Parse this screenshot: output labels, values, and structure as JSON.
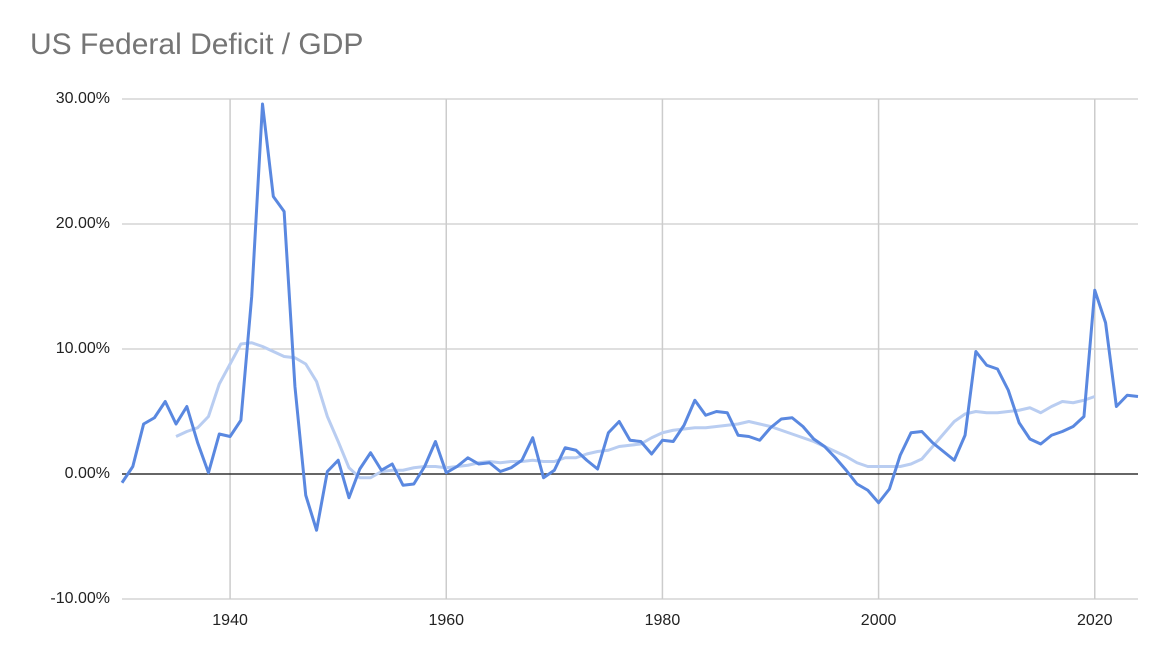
{
  "chart_data": {
    "type": "line",
    "title": "US Federal Deficit / GDP",
    "x": [
      1930,
      1931,
      1932,
      1933,
      1934,
      1935,
      1936,
      1937,
      1938,
      1939,
      1940,
      1941,
      1942,
      1943,
      1944,
      1945,
      1946,
      1947,
      1948,
      1949,
      1950,
      1951,
      1952,
      1953,
      1954,
      1955,
      1956,
      1957,
      1958,
      1959,
      1960,
      1961,
      1962,
      1963,
      1964,
      1965,
      1966,
      1967,
      1968,
      1969,
      1970,
      1971,
      1972,
      1973,
      1974,
      1975,
      1976,
      1977,
      1978,
      1979,
      1980,
      1981,
      1982,
      1983,
      1984,
      1985,
      1986,
      1987,
      1988,
      1989,
      1990,
      1991,
      1992,
      1993,
      1994,
      1995,
      1996,
      1997,
      1998,
      1999,
      2000,
      2001,
      2002,
      2003,
      2004,
      2005,
      2006,
      2007,
      2008,
      2009,
      2010,
      2011,
      2012,
      2013,
      2014,
      2015,
      2016,
      2017,
      2018,
      2019,
      2020,
      2021,
      2022,
      2023,
      2024
    ],
    "series": [
      {
        "color": "#5a88e0",
        "values": [
          -0.7,
          0.6,
          4.0,
          4.5,
          5.8,
          4.0,
          5.4,
          2.5,
          0.1,
          3.2,
          3.0,
          4.3,
          14.2,
          29.6,
          22.2,
          21.0,
          7.0,
          -1.7,
          -4.5,
          0.2,
          1.1,
          -1.9,
          0.4,
          1.7,
          0.3,
          0.8,
          -0.9,
          -0.8,
          0.6,
          2.6,
          0.1,
          0.6,
          1.3,
          0.8,
          0.9,
          0.2,
          0.5,
          1.1,
          2.9,
          -0.3,
          0.3,
          2.1,
          1.9,
          1.1,
          0.4,
          3.3,
          4.2,
          2.7,
          2.6,
          1.6,
          2.7,
          2.6,
          3.9,
          5.9,
          4.7,
          5.0,
          4.9,
          3.1,
          3.0,
          2.7,
          3.7,
          4.4,
          4.5,
          3.8,
          2.8,
          2.2,
          1.3,
          0.3,
          -0.8,
          -1.3,
          -2.3,
          -1.2,
          1.5,
          3.3,
          3.4,
          2.5,
          1.8,
          1.1,
          3.1,
          9.8,
          8.7,
          8.4,
          6.7,
          4.1,
          2.8,
          2.4,
          3.1,
          3.4,
          3.8,
          4.6,
          14.7,
          12.1,
          5.4,
          6.3,
          6.2
        ]
      },
      {
        "color": "#b9cdf1",
        "values": [
          null,
          null,
          null,
          null,
          null,
          3.0,
          3.4,
          3.7,
          4.6,
          7.2,
          8.8,
          10.4,
          10.5,
          10.2,
          9.8,
          9.4,
          9.3,
          8.8,
          7.4,
          4.6,
          2.6,
          0.5,
          -0.3,
          -0.3,
          0.2,
          0.3,
          0.3,
          0.5,
          0.6,
          0.6,
          0.5,
          0.6,
          0.7,
          0.9,
          1.0,
          0.9,
          1.0,
          1.0,
          1.1,
          1.0,
          1.0,
          1.3,
          1.3,
          1.6,
          1.8,
          1.9,
          2.2,
          2.3,
          2.4,
          2.9,
          3.3,
          3.5,
          3.6,
          3.7,
          3.7,
          3.8,
          3.9,
          4.0,
          4.2,
          4.0,
          3.8,
          3.5,
          3.2,
          2.9,
          2.6,
          2.2,
          1.8,
          1.4,
          0.9,
          0.6,
          0.6,
          0.6,
          0.6,
          0.8,
          1.2,
          2.2,
          3.2,
          4.2,
          4.8,
          5.0,
          4.9,
          4.9,
          5.0,
          5.1,
          5.3,
          4.9,
          5.4,
          5.8,
          5.7,
          5.9,
          6.2,
          null,
          null,
          null,
          null
        ]
      }
    ],
    "xlim": [
      1930,
      2024
    ],
    "xticks": [
      1940,
      1960,
      1980,
      2000,
      2020
    ],
    "ylim": [
      -10,
      30
    ],
    "yticks": [
      {
        "value": -10,
        "label": "-10.00%"
      },
      {
        "value": 0,
        "label": "0.00%"
      },
      {
        "value": 10,
        "label": "10.00%"
      },
      {
        "value": 20,
        "label": "20.00%"
      },
      {
        "value": 30,
        "label": "30.00%"
      }
    ],
    "grid": true
  }
}
